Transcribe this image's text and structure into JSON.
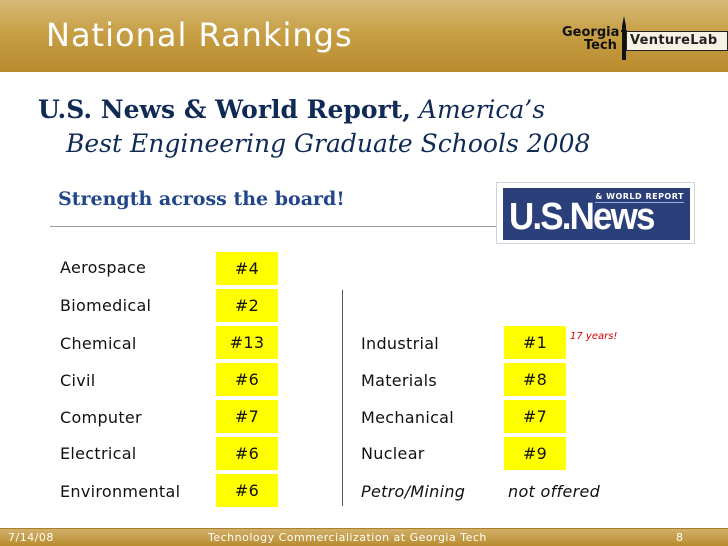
{
  "slide": {
    "title": "National Rankings",
    "logo": {
      "line1": "Georgia",
      "line2": "Tech",
      "venture": "VentureLab"
    },
    "publication": {
      "name": "U.S. News & World Report,",
      "report_line1": "America’s",
      "report_line2": "Best Engineering Graduate Schools 2008"
    },
    "subtitle": "Strength across the board!",
    "usnews_logo": {
      "top": "& WORLD REPORT",
      "main": "U.S.News"
    },
    "left_rankings": [
      {
        "discipline": "Aerospace",
        "rank": "#4"
      },
      {
        "discipline": "Biomedical",
        "rank": "#2"
      },
      {
        "discipline": "Chemical",
        "rank": "#13"
      },
      {
        "discipline": "Civil",
        "rank": "#6"
      },
      {
        "discipline": "Computer",
        "rank": "#7"
      },
      {
        "discipline": "Electrical",
        "rank": "#6"
      },
      {
        "discipline": "Environmental",
        "rank": "#6"
      }
    ],
    "right_rankings": [
      {
        "discipline": "Industrial",
        "rank": "#1"
      },
      {
        "discipline": "Materials",
        "rank": "#8"
      },
      {
        "discipline": "Mechanical",
        "rank": "#7"
      },
      {
        "discipline": "Nuclear",
        "rank": "#9"
      },
      {
        "discipline": "Petro/Mining",
        "rank": "not offered"
      }
    ],
    "note": "17 years!",
    "footer": {
      "date": "7/14/08",
      "center": "Technology Commercialization at Georgia Tech",
      "page": "8"
    },
    "colors": {
      "header": "#c49c44",
      "highlight": "#ffff00",
      "heading_text": "#0f2a55",
      "subtitle_text": "#22468a",
      "note": "#d60000"
    }
  }
}
